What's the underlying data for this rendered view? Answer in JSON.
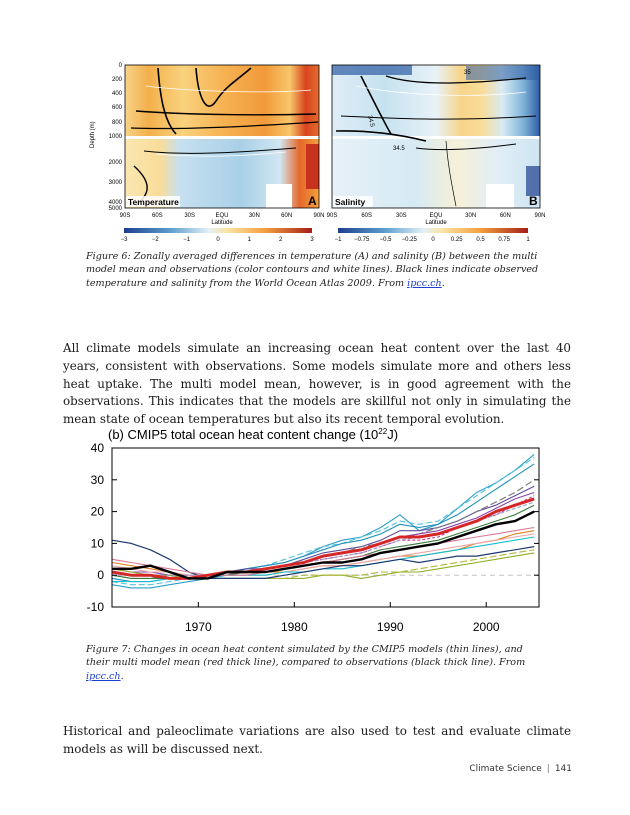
{
  "figure6": {
    "panel_a": {
      "label": "Temperature",
      "letter": "A",
      "y_axis_title": "Depth (m)",
      "y_ticks": [
        "0",
        "200",
        "400",
        "600",
        "800",
        "1000",
        "2000",
        "3000",
        "4000",
        "5000"
      ],
      "x_ticks": [
        "90S",
        "60S",
        "30S",
        "EQU",
        "30N",
        "60N",
        "90N"
      ],
      "x_axis_title": "Latitude",
      "colorbar_ticks": [
        "−3",
        "−2",
        "−1",
        "0",
        "1",
        "2",
        "3"
      ]
    },
    "panel_b": {
      "label": "Salinity",
      "letter": "B",
      "contour_labels": [
        "34.5",
        "34.5"
      ],
      "extra_label": "35",
      "x_ticks": [
        "90S",
        "60S",
        "30S",
        "EQU",
        "30N",
        "60N",
        "90N"
      ],
      "x_axis_title": "Latitude",
      "colorbar_ticks": [
        "−1",
        "−0.75",
        "−0.5",
        "−0.25",
        "0",
        "0.25",
        "0.5",
        "0.75",
        "1"
      ]
    },
    "colors": {
      "warm": [
        "#fbe3a4",
        "#f8c56a",
        "#f3a03d",
        "#e8722a",
        "#d2401f",
        "#a51e1a"
      ],
      "cool": [
        "#e3f0f7",
        "#bcdcec",
        "#92c4e1",
        "#5e9fcd",
        "#3771b3",
        "#1c3f8f"
      ]
    },
    "caption_text": "Figure 6: Zonally averaged differences in temperature (A) and salinity (B) between the multi model mean and observations (color contours and white lines). Black lines indicate observed temperature and salinity from the World Ocean Atlas 2009. From ",
    "caption_link": "ipcc.ch",
    "caption_end": "."
  },
  "paragraph1": "All climate models simulate an increasing ocean heat content over the last 40 years, consistent with observations. Some models simulate more and others less heat uptake. The multi model mean, however, is in good agreement with the observations. This indicates that the models are skillful not only in simulating the mean state of ocean temperatures but also its recent temporal evolution.",
  "chart_data": {
    "type": "line",
    "title": "(b) CMIP5 total ocean heat content change (10",
    "title_sup": "22",
    "title_end": "J)",
    "ylim": [
      -10,
      40
    ],
    "xlim": [
      1961,
      2005.5
    ],
    "y_ticks": [
      -10,
      0,
      10,
      20,
      30,
      40
    ],
    "x_ticks": [
      1970,
      1980,
      1990,
      2000
    ],
    "x": [
      1961,
      1963,
      1965,
      1967,
      1969,
      1971,
      1973,
      1975,
      1977,
      1979,
      1981,
      1983,
      1985,
      1987,
      1989,
      1991,
      1993,
      1995,
      1997,
      1999,
      2001,
      2003,
      2005
    ],
    "series": [
      {
        "color": "#2a9fc9",
        "width": 1.1,
        "dash": "",
        "values": [
          -3,
          -4,
          -4,
          -3,
          -2,
          -1,
          0,
          2,
          3,
          4,
          6,
          9,
          11,
          12,
          15,
          19,
          14,
          16,
          21,
          26,
          29,
          33,
          38
        ]
      },
      {
        "color": "#4fc3dc",
        "width": 1.1,
        "dash": "6 3",
        "values": [
          -2,
          -3,
          -3,
          -2,
          -1,
          0,
          1,
          2,
          3,
          5,
          7,
          9,
          10,
          12,
          14,
          17,
          16,
          17,
          21,
          25,
          29,
          33,
          37
        ]
      },
      {
        "color": "#1f8fb8",
        "width": 1.1,
        "dash": "",
        "values": [
          -1,
          -2,
          -2,
          -1,
          -1,
          0,
          1,
          2,
          3,
          4,
          6,
          8,
          10,
          11,
          13,
          16,
          15,
          16,
          19,
          23,
          27,
          31,
          35
        ]
      },
      {
        "color": "#5d4e9c",
        "width": 1.1,
        "dash": "",
        "values": [
          1,
          0,
          0,
          0,
          -1,
          0,
          1,
          2,
          2,
          3,
          5,
          7,
          8,
          9,
          11,
          14,
          14,
          15,
          17,
          20,
          22,
          25,
          28
        ]
      },
      {
        "color": "#777777",
        "width": 1.1,
        "dash": "7 3",
        "values": [
          0,
          -1,
          -1,
          0,
          0,
          0,
          1,
          1,
          2,
          3,
          4,
          6,
          7,
          9,
          10,
          12,
          13,
          15,
          17,
          20,
          23,
          26,
          30
        ]
      },
      {
        "color": "#8e44ad",
        "width": 1.1,
        "dash": "",
        "values": [
          2,
          1,
          1,
          0,
          0,
          0,
          1,
          1,
          2,
          3,
          4,
          6,
          7,
          8,
          10,
          12,
          13,
          14,
          16,
          18,
          21,
          24,
          26
        ]
      },
      {
        "color": "#c23b8a",
        "width": 1.1,
        "dash": "3 2",
        "values": [
          1,
          0,
          0,
          -1,
          -1,
          0,
          0,
          1,
          2,
          3,
          4,
          5,
          6,
          7,
          9,
          11,
          11,
          12,
          15,
          17,
          19,
          22,
          25
        ]
      },
      {
        "color": "#3b7a3b",
        "width": 1.1,
        "dash": "",
        "values": [
          0,
          -1,
          -1,
          -1,
          -1,
          0,
          0,
          1,
          1,
          2,
          3,
          4,
          5,
          6,
          8,
          9,
          10,
          11,
          13,
          15,
          17,
          19,
          22
        ]
      },
      {
        "color": "#e67e22",
        "width": 1.1,
        "dash": "",
        "values": [
          4,
          3,
          2,
          1,
          0,
          0,
          0,
          0,
          1,
          1,
          2,
          3,
          3,
          4,
          5,
          6,
          6,
          7,
          8,
          10,
          11,
          13,
          14
        ]
      },
      {
        "color": "#e8a8a8",
        "width": 1.1,
        "dash": "",
        "values": [
          3,
          2,
          1,
          1,
          0,
          0,
          0,
          0,
          0,
          1,
          2,
          3,
          3,
          4,
          5,
          6,
          7,
          8,
          9,
          10,
          11,
          12,
          13
        ]
      },
      {
        "color": "#17becf",
        "width": 1.1,
        "dash": "",
        "values": [
          -2,
          -2,
          -2,
          -1,
          -1,
          0,
          0,
          0,
          0,
          1,
          1,
          2,
          2,
          3,
          4,
          5,
          6,
          7,
          8,
          9,
          10,
          11,
          12
        ]
      },
      {
        "color": "#8fae2a",
        "width": 1.1,
        "dash": "",
        "values": [
          2,
          1,
          0,
          0,
          -1,
          -1,
          -1,
          -1,
          -1,
          -1,
          -1,
          0,
          0,
          -1,
          0,
          1,
          1,
          2,
          3,
          4,
          5,
          6,
          7
        ]
      },
      {
        "color": "#b0b832",
        "width": 1.1,
        "dash": "7 3",
        "values": [
          1,
          0,
          0,
          -1,
          -1,
          -1,
          -1,
          -1,
          -1,
          -1,
          0,
          0,
          0,
          0,
          1,
          1,
          2,
          3,
          4,
          5,
          6,
          7,
          8
        ]
      },
      {
        "color": "#1b3b72",
        "width": 1.2,
        "dash": "",
        "values": [
          11,
          10,
          8,
          5,
          1,
          -1,
          -1,
          -1,
          -1,
          0,
          1,
          2,
          3,
          3,
          4,
          5,
          4,
          5,
          6,
          6,
          7,
          8,
          9
        ]
      },
      {
        "color": "#d97a9a",
        "width": 1.1,
        "dash": "",
        "values": [
          5,
          4,
          3,
          2,
          1,
          0,
          0,
          0,
          1,
          2,
          3,
          4,
          5,
          6,
          7,
          8,
          9,
          10,
          11,
          12,
          13,
          14,
          15
        ]
      },
      {
        "color": "#9b9bcf",
        "width": 1.1,
        "dash": "4 2",
        "values": [
          0,
          0,
          0,
          0,
          0,
          0,
          1,
          1,
          2,
          3,
          4,
          5,
          6,
          7,
          9,
          11,
          12,
          13,
          15,
          17,
          19,
          21,
          23
        ]
      },
      {
        "color": "#d62728",
        "width": 3,
        "dash": "",
        "values": [
          1,
          0,
          0,
          -1,
          -1,
          0,
          1,
          1,
          2,
          3,
          4,
          6,
          7,
          8,
          10,
          12,
          12,
          13,
          15,
          17,
          20,
          22,
          24
        ]
      },
      {
        "color": "#000000",
        "width": 2.4,
        "dash": "",
        "values": [
          2,
          2,
          3,
          1,
          -1,
          -1,
          1,
          1,
          1,
          2,
          3,
          4,
          4,
          5,
          7,
          8,
          9,
          10,
          12,
          14,
          16,
          17,
          20
        ]
      }
    ],
    "caption_text": "Figure 7: Changes in ocean heat content simulated by the CMIP5 models (thin lines), and their multi model mean (red thick line), compared to observations (black thick line). From ",
    "caption_link": "ipcc.ch",
    "caption_end": "."
  },
  "paragraph2": "Historical and paleoclimate variations are also used to test and evaluate climate models as will be discussed next.",
  "footer": {
    "section": "Climate Science",
    "page": "141"
  }
}
